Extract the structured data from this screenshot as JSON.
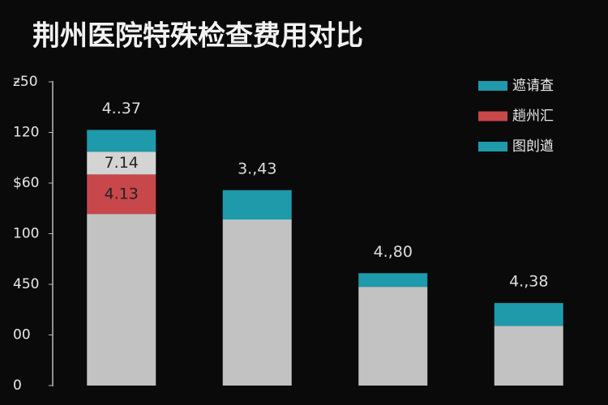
{
  "chart_data": {
    "type": "stacked_bar",
    "title": "荆州医院特殊检查费用对比",
    "categories": [
      null,
      null,
      null,
      null
    ],
    "series": [
      {
        "color": "#c2c2c2",
        "values": [
          3.39,
          3.28,
          1.95,
          1.18
        ]
      },
      {
        "color": "#c8474a",
        "values": [
          0.78,
          null,
          null,
          null
        ]
      },
      {
        "color": "#d4d4d4",
        "values": [
          0.45,
          null,
          null,
          null
        ]
      },
      {
        "color": "#1e9aab",
        "values": [
          0.43,
          0.58,
          0.27,
          0.45
        ]
      }
    ],
    "top_labels": [
      "4..37",
      "3.,43",
      "4.,80",
      "4.,38"
    ],
    "segment_labels": [
      [
        "4.13",
        "7.14"
      ]
    ],
    "legend": [
      {
        "name": "遮请査",
        "color": "#1e9aab"
      },
      {
        "name": "趟州汇",
        "color": "#c8474a"
      },
      {
        "name": "图剆遒",
        "color": "#1e9aab"
      }
    ],
    "ylim": [
      0,
      6
    ],
    "yticks": [
      {
        "value": 0,
        "label": "0"
      },
      {
        "value": 1,
        "label": "00"
      },
      {
        "value": 2,
        "label": "450"
      },
      {
        "value": 3,
        "label": "100"
      },
      {
        "value": 4,
        "label": "$60"
      },
      {
        "value": 5,
        "label": "120"
      },
      {
        "value": 6,
        "label": "ƶ50"
      }
    ]
  }
}
